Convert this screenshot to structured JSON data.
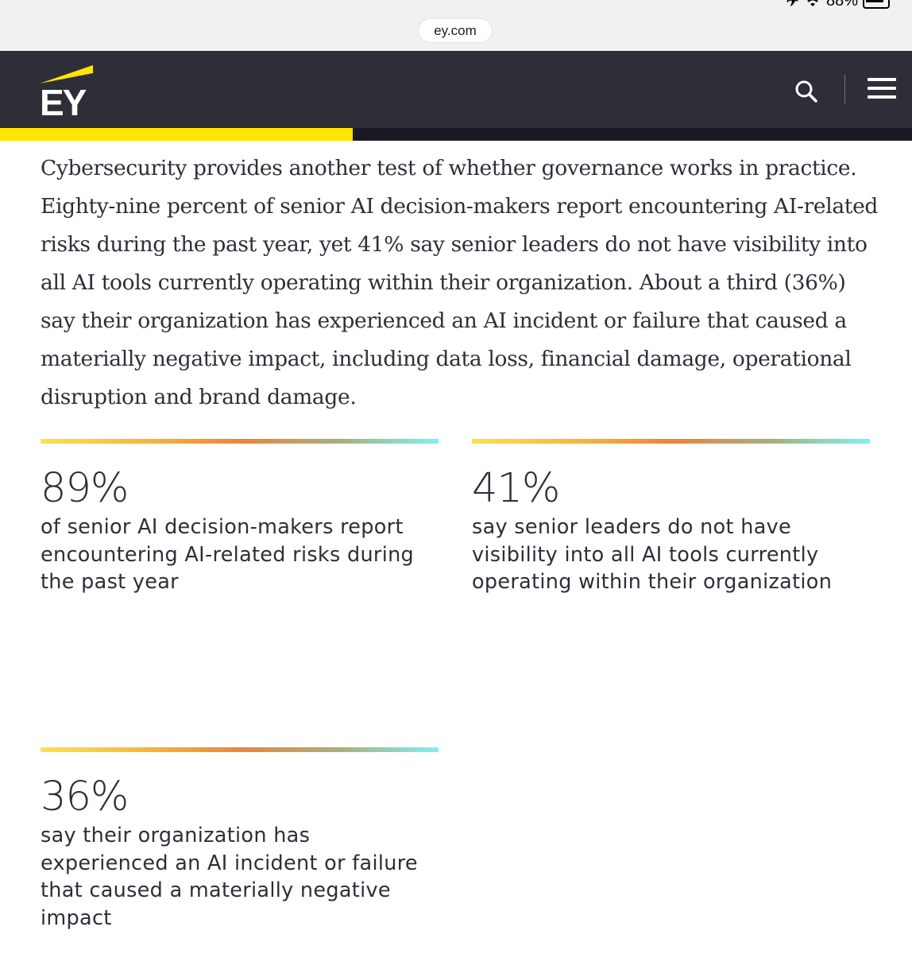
{
  "browser": {
    "url": "ey.com",
    "battery": "88%"
  },
  "header": {
    "logo_text": "EY",
    "reading_progress": 0.387,
    "accent_color": "#ffe600",
    "background_color": "#2e2e38"
  },
  "article": {
    "paragraph": "Cybersecurity provides another test of whether governance works in practice. Eighty-nine percent of senior AI decision-makers report encountering AI-related risks during the past year, yet 41% say senior leaders do not have visibility into all AI tools currently operating within their organization. About a third (36%) say their organization has experienced an AI incident or failure that caused a materially negative impact, including data loss, financial damage, operational disruption and brand damage."
  },
  "stats": [
    {
      "value": "89%",
      "description": "of senior AI decision-makers report encountering AI-related risks during the past year"
    },
    {
      "value": "41%",
      "description": "say senior leaders do not have visibility into all AI tools currently operating within their organization"
    },
    {
      "value": "36%",
      "description": "say their organization has experienced an AI incident or failure that caused a materially negative impact"
    }
  ]
}
